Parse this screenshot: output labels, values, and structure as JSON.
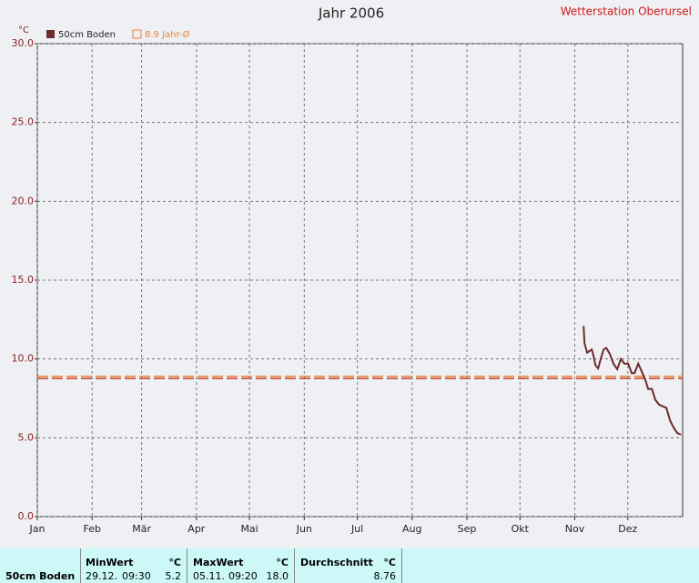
{
  "chart_data": {
    "type": "line",
    "title": "Jahr 2006",
    "station": "Wetterstation Oberursel",
    "y_unit": "°C",
    "x": [
      309.0,
      309.5,
      311.0,
      313.6,
      314.6,
      315.7,
      317.2,
      318.7,
      320.3,
      321.8,
      323.9,
      325.9,
      328.0,
      330.1,
      332.1,
      334.2,
      336.2,
      337.8,
      339.9,
      341.9,
      344.0,
      345.5,
      347.6,
      349.6,
      351.7,
      353.7,
      355.8,
      357.9,
      359.9,
      362.0,
      364.1
    ],
    "series": [
      {
        "name": "50cm Boden",
        "color": "#6e2b2b",
        "values": [
          12.1,
          11.0,
          10.4,
          10.6,
          10.2,
          9.6,
          9.4,
          10.0,
          10.6,
          10.7,
          10.3,
          9.7,
          9.35,
          10.0,
          9.7,
          9.7,
          9.1,
          9.1,
          9.7,
          9.2,
          8.65,
          8.1,
          8.1,
          7.4,
          7.1,
          7.0,
          6.9,
          6.1,
          5.65,
          5.3,
          5.2
        ]
      }
    ],
    "reference_lines": [
      {
        "label": "8.9 Jahr-Ø",
        "value": 8.9,
        "color": "#e8823a"
      }
    ],
    "average_line_color": "#c8402c",
    "xlim": [
      0,
      365
    ],
    "xticks": [
      {
        "value": 0,
        "label": "Jan"
      },
      {
        "value": 31,
        "label": "Feb"
      },
      {
        "value": 59,
        "label": "Mär"
      },
      {
        "value": 90,
        "label": "Apr"
      },
      {
        "value": 120,
        "label": "Mai"
      },
      {
        "value": 151,
        "label": "Jun"
      },
      {
        "value": 181,
        "label": "Jul"
      },
      {
        "value": 212,
        "label": "Aug"
      },
      {
        "value": 243,
        "label": "Sep"
      },
      {
        "value": 273,
        "label": "Okt"
      },
      {
        "value": 304,
        "label": "Nov"
      },
      {
        "value": 334,
        "label": "Dez"
      }
    ],
    "ylim": [
      0,
      30
    ],
    "yticks": [
      {
        "value": 0,
        "label": "0.0"
      },
      {
        "value": 5,
        "label": "5.0"
      },
      {
        "value": 10,
        "label": "10.0"
      },
      {
        "value": 15,
        "label": "15.0"
      },
      {
        "value": 20,
        "label": "20.0"
      },
      {
        "value": 25,
        "label": "25.0"
      },
      {
        "value": 30,
        "label": "30.0"
      }
    ],
    "grid": true
  },
  "table": {
    "name": "50cm Boden",
    "min": {
      "label": "MinWert",
      "unit": "°C",
      "date": "29.12.",
      "time": "09:30",
      "value": "5.2"
    },
    "max": {
      "label": "MaxWert",
      "unit": "°C",
      "date": "05.11.",
      "time": "09:20",
      "value": "18.0"
    },
    "avg": {
      "label": "Durchschnitt",
      "unit": "°C",
      "value": 8.76
    }
  }
}
